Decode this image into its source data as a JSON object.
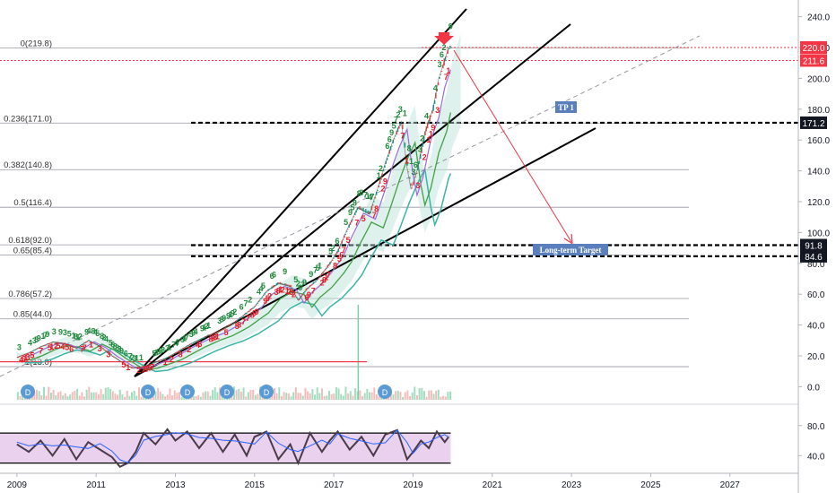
{
  "chart_data": [
    {
      "type": "line",
      "panel": "price",
      "x_ticks": [
        "2009",
        "2011",
        "2013",
        "2015",
        "2017",
        "2019",
        "2021",
        "2023",
        "2025",
        "2027"
      ],
      "y_ticks": [
        "0.0",
        "20.0",
        "40.0",
        "60.0",
        "80.0",
        "100.0",
        "120.0",
        "140.0",
        "160.0",
        "180.0",
        "200.0",
        "220.0",
        "240.0"
      ],
      "ylim": [
        -5,
        245
      ],
      "xlim": [
        2008.8,
        2028.5
      ],
      "series": [
        {
          "values": [
            [
              2009.0,
              19
            ],
            [
              2009.3,
              22
            ],
            [
              2009.6,
              26
            ],
            [
              2009.9,
              29
            ],
            [
              2010.2,
              28
            ],
            [
              2010.5,
              25
            ],
            [
              2010.8,
              30
            ],
            [
              2011.1,
              26
            ],
            [
              2011.4,
              20
            ],
            [
              2011.7,
              15
            ],
            [
              2011.9,
              12
            ],
            [
              2012.2,
              13
            ],
            [
              2012.5,
              16
            ],
            [
              2012.8,
              19
            ],
            [
              2013.0,
              22
            ],
            [
              2013.4,
              28
            ],
            [
              2013.8,
              33
            ],
            [
              2014.1,
              36
            ],
            [
              2014.5,
              42
            ],
            [
              2014.8,
              48
            ],
            [
              2015.0,
              52
            ],
            [
              2015.3,
              62
            ],
            [
              2015.6,
              67
            ],
            [
              2015.9,
              65
            ],
            [
              2016.1,
              56
            ],
            [
              2016.3,
              63
            ],
            [
              2016.6,
              70
            ],
            [
              2016.9,
              80
            ],
            [
              2017.1,
              88
            ],
            [
              2017.3,
              100
            ],
            [
              2017.6,
              116
            ],
            [
              2017.9,
              112
            ],
            [
              2018.1,
              128
            ],
            [
              2018.3,
              145
            ],
            [
              2018.5,
              160
            ],
            [
              2018.7,
              172
            ],
            [
              2018.85,
              142
            ],
            [
              2018.95,
              128
            ],
            [
              2019.1,
              140
            ],
            [
              2019.3,
              165
            ],
            [
              2019.5,
              180
            ],
            [
              2019.65,
              200
            ],
            [
              2019.8,
              212
            ],
            [
              2019.9,
              219.8
            ]
          ]
        }
      ],
      "fib_levels": [
        {
          "label": "0(219.8)",
          "value": 219.8
        },
        {
          "label": "0.236(171.0)",
          "value": 171.0
        },
        {
          "label": "0.382(140.8)",
          "value": 140.8
        },
        {
          "label": "0.5(116.4)",
          "value": 116.4
        },
        {
          "label": "0.618(92.0)",
          "value": 92.0
        },
        {
          "label": "0.65(85.4)",
          "value": 85.4
        },
        {
          "label": "0.786(57.2)",
          "value": 57.2
        },
        {
          "label": "0.85(44.0)",
          "value": 44.0
        },
        {
          "label": "1(13.0)",
          "value": 13.0
        }
      ],
      "price_tags": [
        {
          "label": "220.0",
          "value": 220.0,
          "color": "#f23645"
        },
        {
          "label": "211.6",
          "value": 211.6,
          "color": "#f23645"
        },
        {
          "label": "171.2",
          "value": 171.2,
          "color": "#131722"
        },
        {
          "label": "91.8",
          "value": 91.8,
          "color": "#131722"
        },
        {
          "label": "84.6",
          "value": 84.6,
          "color": "#131722"
        }
      ],
      "annotations": [
        {
          "text": "TP 1",
          "x": 2019.9,
          "y": 176
        },
        {
          "text": "Long-term Target",
          "x": 2020.75,
          "y": 88
        }
      ],
      "dividend_markers": [
        "D",
        "D",
        "D",
        "D",
        "D",
        "D"
      ],
      "colors": {
        "up_label": "#1e8a3c",
        "down_label": "#e31b23",
        "arrow": "#f23645",
        "ma_teal": "#3bb4a6",
        "ma_green": "#43a047",
        "ma_purple": "#9c6ade"
      }
    },
    {
      "type": "line",
      "panel": "oscillator",
      "y_ticks": [
        "40.0",
        "80.0"
      ],
      "ylim": [
        20,
        100
      ],
      "bands": [
        30,
        70
      ],
      "series": [
        {
          "values": [
            [
              2009.0,
              55
            ],
            [
              2009.3,
              45
            ],
            [
              2009.6,
              60
            ],
            [
              2009.9,
              40
            ],
            [
              2010.2,
              62
            ],
            [
              2010.5,
              35
            ],
            [
              2010.8,
              58
            ],
            [
              2011.1,
              48
            ],
            [
              2011.4,
              38
            ],
            [
              2011.6,
              25
            ],
            [
              2011.8,
              30
            ],
            [
              2012.0,
              45
            ],
            [
              2012.2,
              70
            ],
            [
              2012.5,
              55
            ],
            [
              2012.8,
              75
            ],
            [
              2013.0,
              60
            ],
            [
              2013.3,
              72
            ],
            [
              2013.6,
              50
            ],
            [
              2013.9,
              70
            ],
            [
              2014.2,
              45
            ],
            [
              2014.5,
              68
            ],
            [
              2014.8,
              40
            ],
            [
              2015.0,
              65
            ],
            [
              2015.3,
              72
            ],
            [
              2015.6,
              35
            ],
            [
              2015.9,
              55
            ],
            [
              2016.1,
              30
            ],
            [
              2016.4,
              70
            ],
            [
              2016.7,
              45
            ],
            [
              2016.9,
              60
            ],
            [
              2017.1,
              72
            ],
            [
              2017.4,
              48
            ],
            [
              2017.7,
              65
            ],
            [
              2018.0,
              40
            ],
            [
              2018.3,
              68
            ],
            [
              2018.6,
              74
            ],
            [
              2018.85,
              35
            ],
            [
              2019.0,
              45
            ],
            [
              2019.2,
              60
            ],
            [
              2019.4,
              50
            ],
            [
              2019.6,
              72
            ],
            [
              2019.8,
              58
            ],
            [
              2019.9,
              65
            ]
          ]
        }
      ]
    }
  ]
}
